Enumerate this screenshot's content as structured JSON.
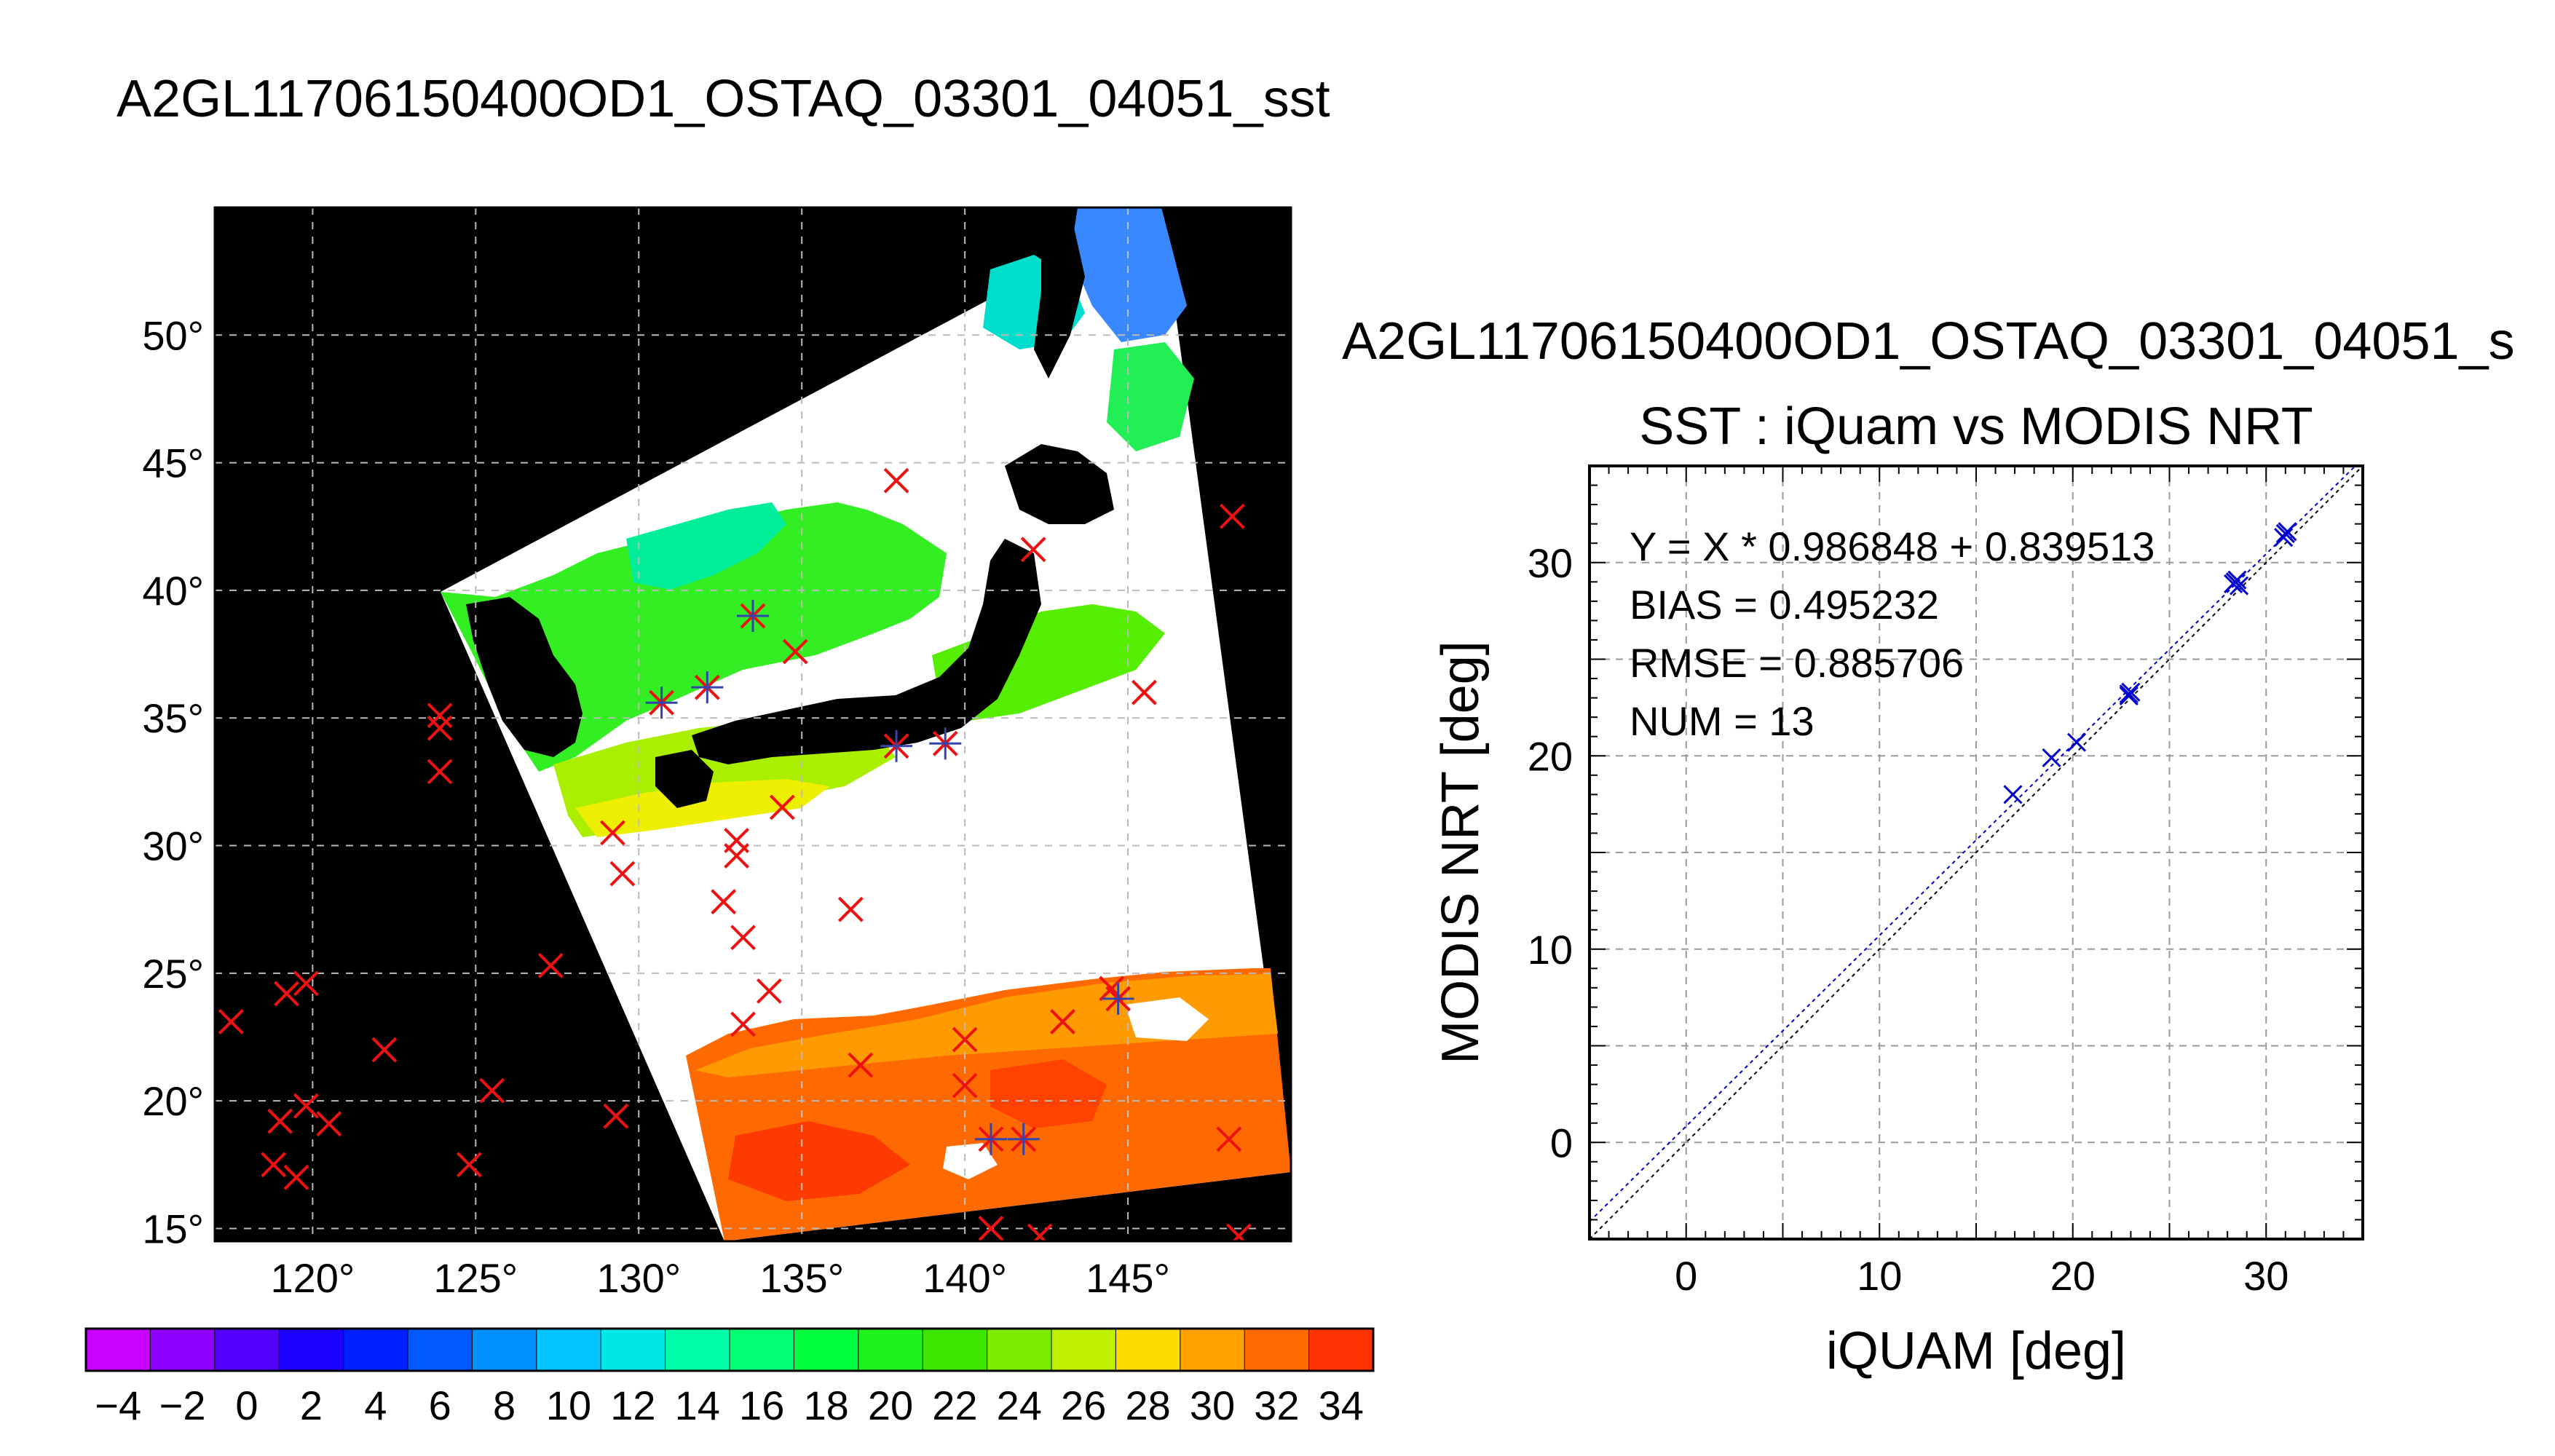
{
  "page": {
    "main_title": "A2GL11706150400OD1_OSTAQ_03301_04051_sst",
    "scatter_title": "A2GL11706150400OD1_OSTAQ_03301_04051_s"
  },
  "map": {
    "lon_ticks": [
      "120°",
      "125°",
      "130°",
      "135°",
      "140°",
      "145°"
    ],
    "lon_values": [
      120,
      125,
      130,
      135,
      140,
      145
    ],
    "lat_ticks": [
      "50°",
      "45°",
      "40°",
      "35°",
      "30°",
      "25°",
      "20°",
      "15°"
    ],
    "lat_values": [
      50,
      45,
      40,
      35,
      30,
      25,
      20,
      15
    ],
    "lon_range": [
      117,
      150
    ],
    "lat_range": [
      14.5,
      55
    ],
    "match_points": [
      [
        117.5,
        23.1,
        false
      ],
      [
        119.2,
        24.2,
        false
      ],
      [
        119.8,
        24.6,
        false
      ],
      [
        122.2,
        22.0,
        false
      ],
      [
        119.0,
        19.2,
        false
      ],
      [
        119.8,
        19.8,
        false
      ],
      [
        120.5,
        19.1,
        false
      ],
      [
        118.8,
        17.5,
        false
      ],
      [
        119.5,
        17.0,
        false
      ],
      [
        124.8,
        17.5,
        false
      ],
      [
        125.5,
        20.4,
        false
      ],
      [
        127.3,
        25.3,
        false
      ],
      [
        129.3,
        19.4,
        false
      ],
      [
        123.9,
        35.1,
        false
      ],
      [
        123.9,
        34.6,
        false
      ],
      [
        123.9,
        32.9,
        false
      ],
      [
        129.2,
        30.5,
        false
      ],
      [
        129.5,
        28.9,
        false
      ],
      [
        132.6,
        27.8,
        false
      ],
      [
        133.2,
        26.4,
        false
      ],
      [
        133.0,
        30.2,
        false
      ],
      [
        133.0,
        29.6,
        false
      ],
      [
        134.4,
        31.5,
        false
      ],
      [
        134.0,
        24.3,
        false
      ],
      [
        133.2,
        23.0,
        false
      ],
      [
        136.5,
        27.5,
        false
      ],
      [
        136.8,
        21.4,
        false
      ],
      [
        137.9,
        44.3,
        false
      ],
      [
        142.1,
        41.6,
        false
      ],
      [
        145.5,
        36.0,
        false
      ],
      [
        148.2,
        42.9,
        false
      ],
      [
        134.8,
        37.6,
        false
      ],
      [
        140.0,
        22.4,
        false
      ],
      [
        140.0,
        20.6,
        false
      ],
      [
        143.0,
        23.1,
        false
      ],
      [
        144.5,
        24.4,
        false
      ],
      [
        148.1,
        18.5,
        false
      ],
      [
        140.8,
        15.0,
        false
      ],
      [
        142.3,
        14.7,
        false
      ],
      [
        148.4,
        14.7,
        false
      ],
      [
        133.5,
        39.0,
        true
      ],
      [
        130.7,
        35.6,
        true
      ],
      [
        132.1,
        36.2,
        true
      ],
      [
        137.9,
        33.9,
        true
      ],
      [
        139.4,
        34.0,
        true
      ],
      [
        144.7,
        24.0,
        true
      ],
      [
        140.8,
        18.5,
        true
      ],
      [
        141.8,
        18.5,
        true
      ]
    ]
  },
  "colorbar": {
    "tick_labels": [
      "−4",
      "−2",
      "0",
      "2",
      "4",
      "6",
      "8",
      "10",
      "12",
      "14",
      "16",
      "18",
      "20",
      "22",
      "24",
      "26",
      "28",
      "30",
      "32",
      "34"
    ],
    "tick_values": [
      -4,
      -2,
      0,
      2,
      4,
      6,
      8,
      10,
      12,
      14,
      16,
      18,
      20,
      22,
      24,
      26,
      28,
      30,
      32,
      34
    ],
    "range": [
      -5,
      35
    ]
  },
  "chart_data": {
    "type": "scatter",
    "title": "SST : iQuam vs MODIS NRT",
    "xlabel": "iQUAM [deg]",
    "ylabel": "MODIS NRT [deg]",
    "xlim": [
      -5,
      35
    ],
    "ylim": [
      -5,
      35
    ],
    "x_ticks": [
      0,
      10,
      20,
      30
    ],
    "y_ticks": [
      0,
      10,
      20,
      30
    ],
    "grid": true,
    "stats": [
      "Y = X * 0.986848 + 0.839513",
      "BIAS = 0.495232",
      "RMSE = 0.885706",
      "NUM = 13"
    ],
    "fit": {
      "slope": 0.986848,
      "intercept": 0.839513
    },
    "points": [
      {
        "x": 16.9,
        "y": 18.0
      },
      {
        "x": 18.9,
        "y": 19.9
      },
      {
        "x": 20.2,
        "y": 20.7
      },
      {
        "x": 22.9,
        "y": 23.1
      },
      {
        "x": 23.0,
        "y": 23.3
      },
      {
        "x": 28.3,
        "y": 28.9
      },
      {
        "x": 28.5,
        "y": 29.1
      },
      {
        "x": 28.6,
        "y": 28.8
      },
      {
        "x": 30.9,
        "y": 31.3
      },
      {
        "x": 31.1,
        "y": 31.6
      },
      {
        "x": 31.0,
        "y": 31.5
      },
      {
        "x": 28.4,
        "y": 29.0
      },
      {
        "x": 22.9,
        "y": 23.2
      }
    ],
    "colors": {
      "points": "#0000cc",
      "fit_line": "#0000cc",
      "identity_line": "#000000"
    }
  }
}
